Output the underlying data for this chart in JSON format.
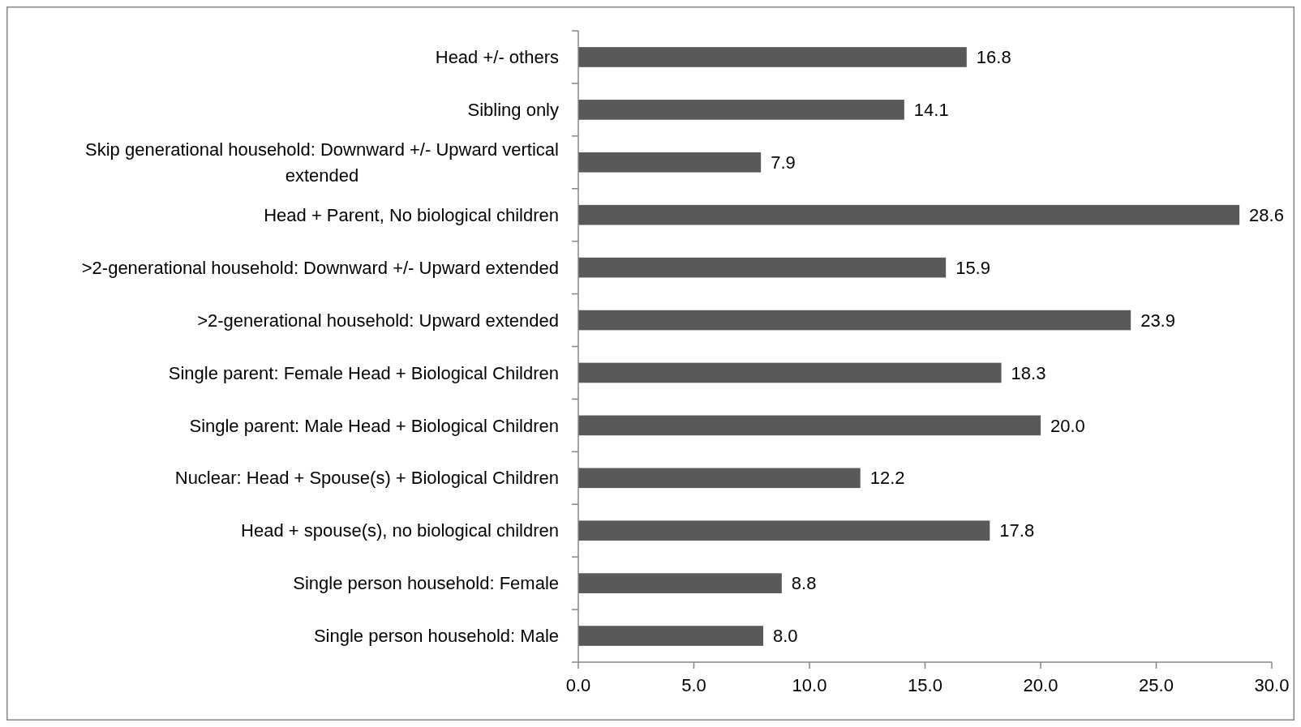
{
  "chart_data": {
    "type": "bar",
    "orientation": "horizontal",
    "categories": [
      "Head +/- others",
      "Sibling only",
      "Skip generational household: Downward +/- Upward vertical extended",
      "Head + Parent, No biological children",
      ">2-generational household: Downward +/- Upward extended",
      ">2-generational household: Upward extended",
      "Single parent: Female Head + Biological Children",
      "Single parent: Male Head + Biological Children",
      "Nuclear: Head + Spouse(s) + Biological Children",
      "Head + spouse(s), no biological children",
      "Single person household: Female",
      "Single person household: Male"
    ],
    "values": [
      16.8,
      14.1,
      7.9,
      28.6,
      15.9,
      23.9,
      18.3,
      20.0,
      12.2,
      17.8,
      8.8,
      8.0
    ],
    "value_labels": [
      "16.8",
      "14.1",
      "7.9",
      "28.6",
      "15.9",
      "23.9",
      "18.3",
      "20.0",
      "12.2",
      "17.8",
      "8.8",
      "8.0"
    ],
    "color": "#595959",
    "xlim": [
      0,
      30
    ],
    "xticks": [
      {
        "value": 0,
        "label": "0.0"
      },
      {
        "value": 5,
        "label": "5.0"
      },
      {
        "value": 10,
        "label": "10.0"
      },
      {
        "value": 15,
        "label": "15.0"
      },
      {
        "value": 20,
        "label": "20.0"
      },
      {
        "value": 25,
        "label": "25.0"
      },
      {
        "value": 30,
        "label": "30.0"
      }
    ],
    "grid": false
  }
}
